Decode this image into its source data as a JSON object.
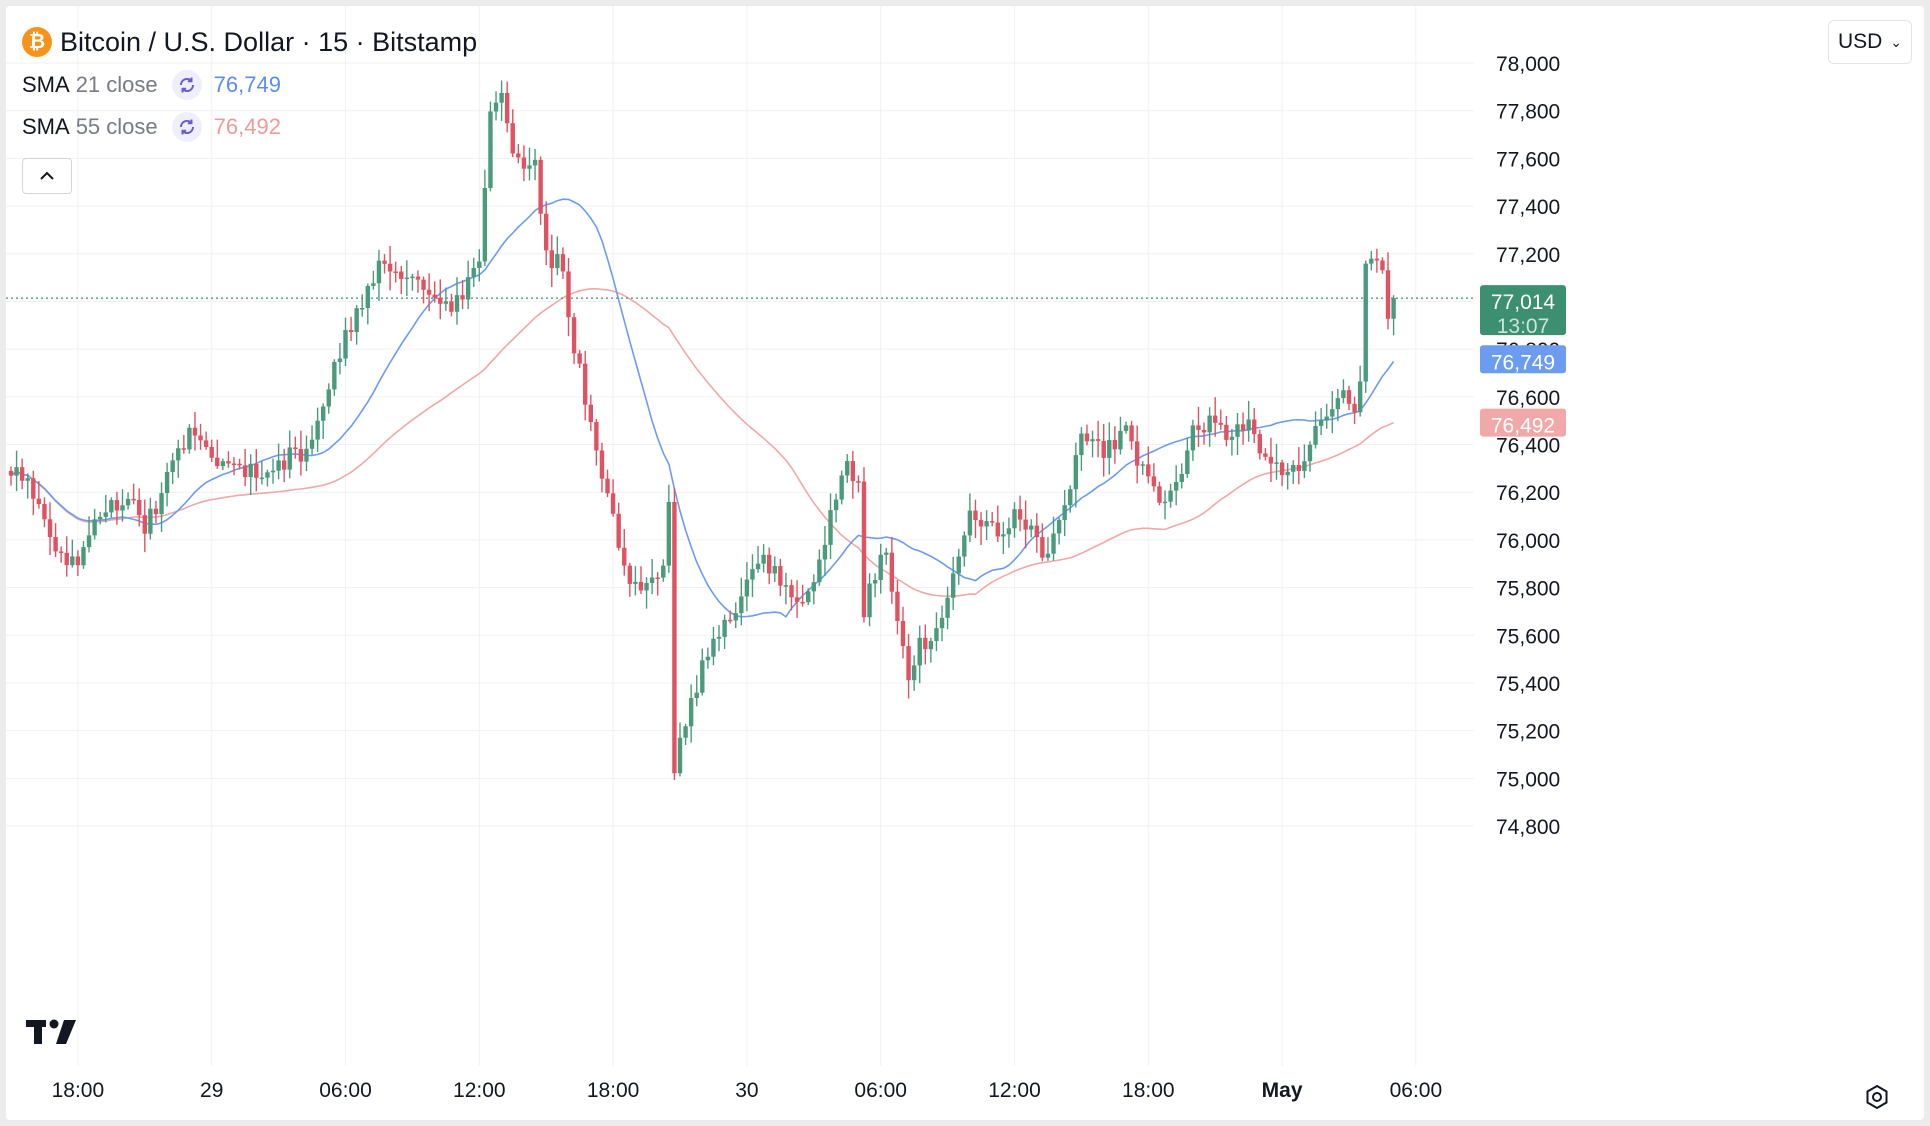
{
  "header": {
    "symbol_title": "Bitcoin / U.S. Dollar · 15 · Bitstamp",
    "logo_glyph": "₿",
    "currency_label": "USD",
    "currency_chevron": "⌄"
  },
  "indicators": [
    {
      "name": "SMA",
      "params": "21 close",
      "value": "76,749",
      "color": "#5b8def"
    },
    {
      "name": "SMA",
      "params": "55 close",
      "value": "76,492",
      "color": "#ef9a9a"
    }
  ],
  "colors": {
    "up": "#4a9b7c",
    "down": "#e05261",
    "sma21": "#6b9cf0",
    "sma55": "#f0a8a8",
    "price_line": "#3d8f72",
    "grid": "#f0f1f4",
    "axis_text": "#131722"
  },
  "chart_data": {
    "type": "candlestick",
    "title": "Bitcoin / U.S. Dollar · 15 · Bitstamp",
    "ylim": [
      74700,
      78300
    ],
    "y_ticks": [
      74800,
      75000,
      75200,
      75400,
      75600,
      75800,
      76000,
      76200,
      76400,
      76600,
      76800,
      77000,
      77200,
      77400,
      77600,
      77800,
      78000
    ],
    "y_tick_labels": [
      "74,800",
      "75,000",
      "75,200",
      "75,400",
      "75,600",
      "75,800",
      "76,000",
      "76,200",
      "76,400",
      "76,600",
      "76,800",
      "77,000",
      "77,200",
      "77,400",
      "77,600",
      "77,800",
      "78,000"
    ],
    "x_ticks": [
      {
        "bar": 12,
        "label": "18:00",
        "bold": false
      },
      {
        "bar": 36,
        "label": "29",
        "bold": false
      },
      {
        "bar": 60,
        "label": "06:00",
        "bold": false
      },
      {
        "bar": 84,
        "label": "12:00",
        "bold": false
      },
      {
        "bar": 108,
        "label": "18:00",
        "bold": false
      },
      {
        "bar": 132,
        "label": "30",
        "bold": false
      },
      {
        "bar": 156,
        "label": "06:00",
        "bold": false
      },
      {
        "bar": 180,
        "label": "12:00",
        "bold": false
      },
      {
        "bar": 204,
        "label": "18:00",
        "bold": false
      },
      {
        "bar": 228,
        "label": "May",
        "bold": true
      },
      {
        "bar": 252,
        "label": "06:00",
        "bold": false
      }
    ],
    "close_knots": [
      [
        0,
        76300
      ],
      [
        3,
        76250
      ],
      [
        6,
        76050
      ],
      [
        9,
        75950
      ],
      [
        12,
        75900
      ],
      [
        15,
        76100
      ],
      [
        18,
        76150
      ],
      [
        21,
        76200
      ],
      [
        24,
        76050
      ],
      [
        27,
        76200
      ],
      [
        30,
        76400
      ],
      [
        33,
        76450
      ],
      [
        36,
        76350
      ],
      [
        39,
        76300
      ],
      [
        42,
        76280
      ],
      [
        45,
        76300
      ],
      [
        48,
        76330
      ],
      [
        51,
        76350
      ],
      [
        54,
        76400
      ],
      [
        57,
        76650
      ],
      [
        60,
        76850
      ],
      [
        63,
        77000
      ],
      [
        66,
        77150
      ],
      [
        68,
        77150
      ],
      [
        70,
        77050
      ],
      [
        73,
        77100
      ],
      [
        76,
        77050
      ],
      [
        79,
        77000
      ],
      [
        81,
        77000
      ],
      [
        84,
        77200
      ],
      [
        86,
        77800
      ],
      [
        88,
        77850
      ],
      [
        90,
        77600
      ],
      [
        92,
        77550
      ],
      [
        94,
        77600
      ],
      [
        96,
        77200
      ],
      [
        99,
        77150
      ],
      [
        101,
        76800
      ],
      [
        103,
        76600
      ],
      [
        105,
        76400
      ],
      [
        108,
        76100
      ],
      [
        110,
        75900
      ],
      [
        112,
        75800
      ],
      [
        114,
        75800
      ],
      [
        117,
        75900
      ],
      [
        118,
        76200
      ],
      [
        119,
        75000
      ],
      [
        120,
        75150
      ],
      [
        122,
        75300
      ],
      [
        124,
        75500
      ],
      [
        126,
        75600
      ],
      [
        128,
        75650
      ],
      [
        130,
        75700
      ],
      [
        132,
        75800
      ],
      [
        135,
        75900
      ],
      [
        138,
        75850
      ],
      [
        141,
        75750
      ],
      [
        144,
        75800
      ],
      [
        147,
        76100
      ],
      [
        150,
        76300
      ],
      [
        152,
        76250
      ],
      [
        153,
        75700
      ],
      [
        155,
        75850
      ],
      [
        157,
        75950
      ],
      [
        159,
        75700
      ],
      [
        161,
        75450
      ],
      [
        163,
        75550
      ],
      [
        165,
        75600
      ],
      [
        168,
        75750
      ],
      [
        170,
        75900
      ],
      [
        172,
        76100
      ],
      [
        175,
        76050
      ],
      [
        178,
        76000
      ],
      [
        180,
        76100
      ],
      [
        182,
        76050
      ],
      [
        185,
        75950
      ],
      [
        188,
        76050
      ],
      [
        190,
        76200
      ],
      [
        192,
        76450
      ],
      [
        194,
        76400
      ],
      [
        196,
        76350
      ],
      [
        198,
        76400
      ],
      [
        200,
        76500
      ],
      [
        202,
        76350
      ],
      [
        204,
        76300
      ],
      [
        206,
        76150
      ],
      [
        208,
        76250
      ],
      [
        210,
        76300
      ],
      [
        212,
        76450
      ],
      [
        215,
        76500
      ],
      [
        218,
        76450
      ],
      [
        221,
        76500
      ],
      [
        224,
        76400
      ],
      [
        227,
        76300
      ],
      [
        230,
        76300
      ],
      [
        233,
        76400
      ],
      [
        236,
        76550
      ],
      [
        239,
        76600
      ],
      [
        241,
        76550
      ],
      [
        242,
        76650
      ],
      [
        243,
        77150
      ],
      [
        244,
        77200
      ],
      [
        246,
        77100
      ],
      [
        247,
        76950
      ],
      [
        248,
        77014
      ]
    ],
    "last_bar_index": 248,
    "last_price": 77014,
    "last_price_label": "77,014",
    "countdown_label": "13:07",
    "series": [
      {
        "name": "SMA 21 close",
        "period": 21,
        "last_value": 76749,
        "last_label": "76,749"
      },
      {
        "name": "SMA 55 close",
        "period": 55,
        "last_value": 76492,
        "last_label": "76,492"
      }
    ]
  }
}
